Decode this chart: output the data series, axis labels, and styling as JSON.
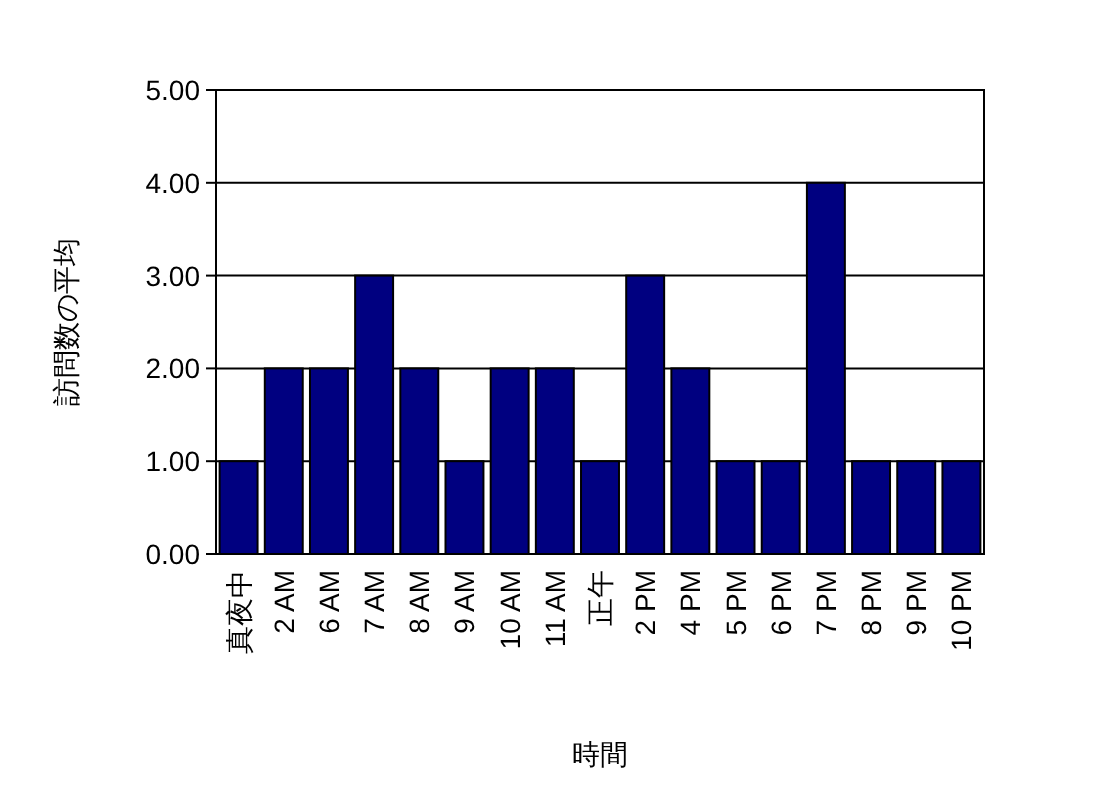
{
  "chart_data": {
    "type": "bar",
    "xlabel": "時間",
    "ylabel": "訪問数の平均",
    "categories": [
      "真夜中",
      "2 AM",
      "6 AM",
      "7 AM",
      "8 AM",
      "9 AM",
      "10 AM",
      "11 AM",
      "正午",
      "2 PM",
      "4 PM",
      "5 PM",
      "6 PM",
      "7 PM",
      "8 PM",
      "9 PM",
      "10 PM"
    ],
    "values": [
      1,
      2,
      2,
      3,
      2,
      1,
      2,
      2,
      1,
      3,
      2,
      1,
      1,
      4,
      1,
      1,
      1
    ],
    "color": "#000080",
    "ylim": [
      0,
      5
    ],
    "yticks": [
      {
        "value": 0,
        "label": "0.00"
      },
      {
        "value": 1,
        "label": "1.00"
      },
      {
        "value": 2,
        "label": "2.00"
      },
      {
        "value": 3,
        "label": "3.00"
      },
      {
        "value": 4,
        "label": "4.00"
      },
      {
        "value": 5,
        "label": "5.00"
      }
    ],
    "grid": "y"
  }
}
